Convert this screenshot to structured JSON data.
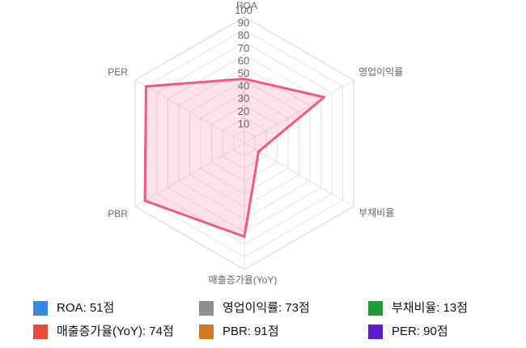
{
  "chart_data": {
    "type": "radar",
    "title": "",
    "axes": [
      {
        "label": "ROA",
        "value": 51
      },
      {
        "label": "영업이익률",
        "value": 73
      },
      {
        "label": "부채비율",
        "value": 13
      },
      {
        "label": "매출증가율(YoY)",
        "value": 74
      },
      {
        "label": "PBR",
        "value": 91
      },
      {
        "label": "PER",
        "value": 90
      }
    ],
    "scale": {
      "min": 0,
      "max": 100,
      "step": 10,
      "tick_labels": [
        "10",
        "20",
        "30",
        "40",
        "50",
        "60",
        "70",
        "80",
        "90",
        "100"
      ]
    },
    "series": {
      "stroke": "#f4587e",
      "fill": "#f4587e",
      "fill_opacity": 0.18,
      "stroke_width": 3
    },
    "grid": {
      "ring_color": "#e3e3e3",
      "outer_ring_color": "#d6d6d6",
      "spoke_color": "#e3e3e3",
      "tick_label_color": "#666666",
      "axis_label_color": "#666666"
    },
    "legend_position": "bottom"
  },
  "legend": {
    "items": [
      {
        "label": "ROA: 51점",
        "color": "#3a87e0"
      },
      {
        "label": "영업이익률: 73점",
        "color": "#8e8e8e"
      },
      {
        "label": "부채비율: 13점",
        "color": "#1d9b38"
      },
      {
        "label": "매출증가율(YoY): 74점",
        "color": "#ea4b35"
      },
      {
        "label": "PBR: 91점",
        "color": "#d2781e"
      },
      {
        "label": "PER: 90점",
        "color": "#5a1ed2"
      }
    ]
  }
}
